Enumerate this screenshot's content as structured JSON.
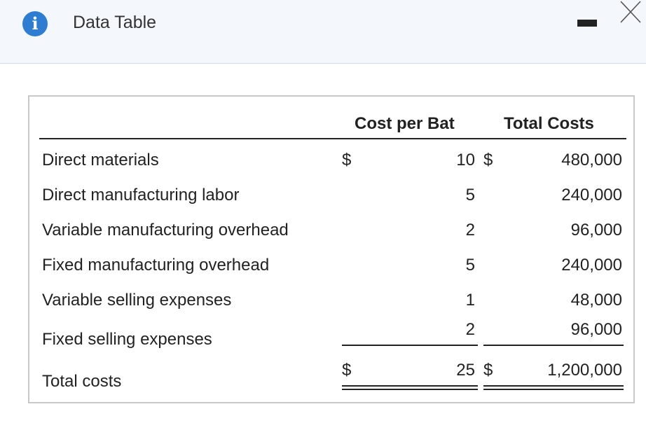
{
  "window": {
    "title": "Data Table",
    "info_icon": "info-icon",
    "minimize_icon": "minimize-icon",
    "close_icon": "close-icon"
  },
  "table": {
    "columns": [
      "Cost per Bat",
      "Total Costs"
    ],
    "currency": "$",
    "rows": [
      {
        "label": "Direct materials",
        "cost_per_bat": "10",
        "total_costs": "480,000"
      },
      {
        "label": "Direct manufacturing labor",
        "cost_per_bat": "5",
        "total_costs": "240,000"
      },
      {
        "label": "Variable manufacturing overhead",
        "cost_per_bat": "2",
        "total_costs": "96,000"
      },
      {
        "label": "Fixed manufacturing overhead",
        "cost_per_bat": "5",
        "total_costs": "240,000"
      },
      {
        "label": "Variable selling expenses",
        "cost_per_bat": "1",
        "total_costs": "48,000"
      },
      {
        "label": "Fixed selling expenses",
        "cost_per_bat": "2",
        "total_costs": "96,000"
      }
    ],
    "total": {
      "label": "Total costs",
      "cost_per_bat": "25",
      "total_costs": "1,200,000"
    }
  }
}
